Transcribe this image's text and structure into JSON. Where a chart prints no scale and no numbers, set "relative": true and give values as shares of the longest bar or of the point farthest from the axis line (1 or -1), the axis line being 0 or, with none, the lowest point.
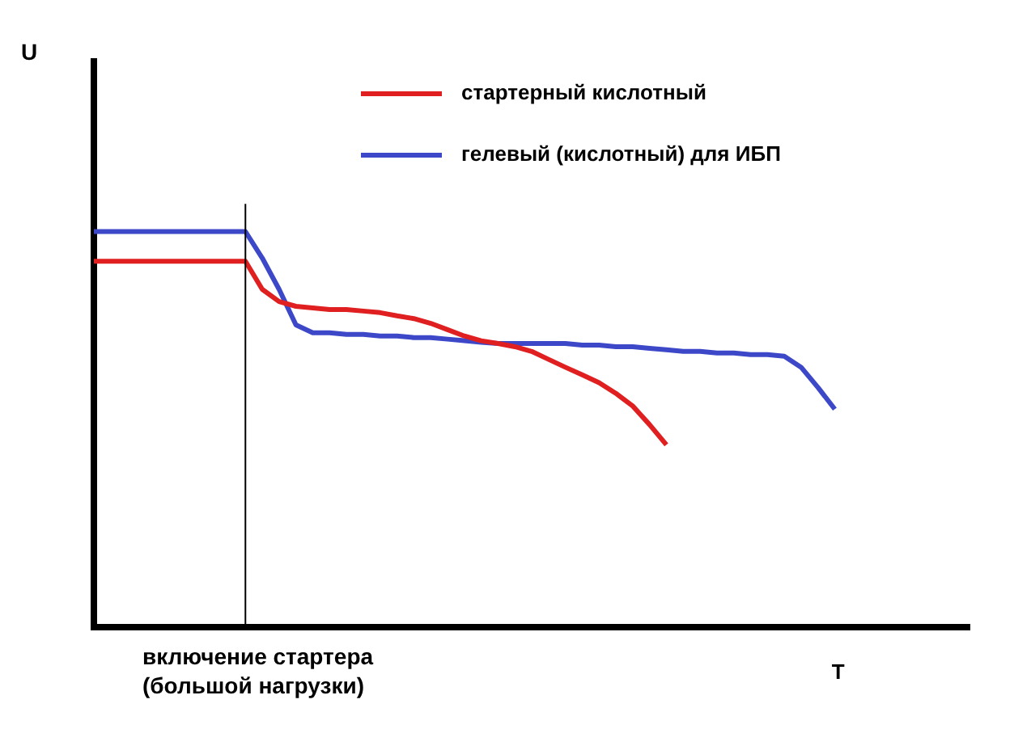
{
  "chart_data": {
    "type": "line",
    "relative": true,
    "xlabel": "T",
    "categories": [
      null,
      null,
      null,
      null,
      null,
      null,
      null,
      null,
      null,
      null,
      null,
      null,
      null,
      null,
      null,
      null,
      null,
      null,
      null,
      null,
      null,
      null,
      null,
      null,
      null,
      null,
      null,
      null,
      null,
      null,
      null,
      null,
      null,
      null,
      null,
      null,
      null,
      null,
      null,
      null,
      null,
      null,
      null,
      null,
      null,
      null,
      null,
      null,
      null,
      null,
      null,
      null,
      null
    ],
    "series": [
      {
        "name": "стартерный кислотный",
        "color": "#e02020",
        "values": [
          0.925,
          0.925,
          0.925,
          0.925,
          0.925,
          0.925,
          0.925,
          0.925,
          0.925,
          0.925,
          0.854,
          0.823,
          0.811,
          0.807,
          0.803,
          0.803,
          0.799,
          0.795,
          0.787,
          0.78,
          0.768,
          0.752,
          0.736,
          0.724,
          0.717,
          0.709,
          0.697,
          0.677,
          0.657,
          0.638,
          0.618,
          0.591,
          0.559,
          0.512,
          0.461,
          null,
          null,
          null,
          null,
          null,
          null,
          null,
          null,
          null,
          null,
          null,
          null,
          null,
          null,
          null,
          null,
          null,
          null
        ]
      },
      {
        "name": "гелевый (кислотный) для ИБП",
        "color": "#3c48c8",
        "values": [
          1,
          1,
          1,
          1,
          1,
          1,
          1,
          1,
          1,
          1,
          0.933,
          0.854,
          0.764,
          0.744,
          0.744,
          0.74,
          0.74,
          0.736,
          0.736,
          0.732,
          0.732,
          0.728,
          0.724,
          0.72,
          0.717,
          0.717,
          0.717,
          0.717,
          0.717,
          0.713,
          0.713,
          0.709,
          0.709,
          0.705,
          0.701,
          0.697,
          0.697,
          0.693,
          0.693,
          0.689,
          0.689,
          0.685,
          0.657,
          0.606,
          0.551,
          null,
          null,
          null,
          null,
          null,
          null,
          null,
          null
        ]
      }
    ],
    "annotations": [
      "включение стартера\n(большой нагрузки)",
      "U"
    ],
    "legend": "top right",
    "marker": "none",
    "line_style": "solid",
    "grid": false
  }
}
